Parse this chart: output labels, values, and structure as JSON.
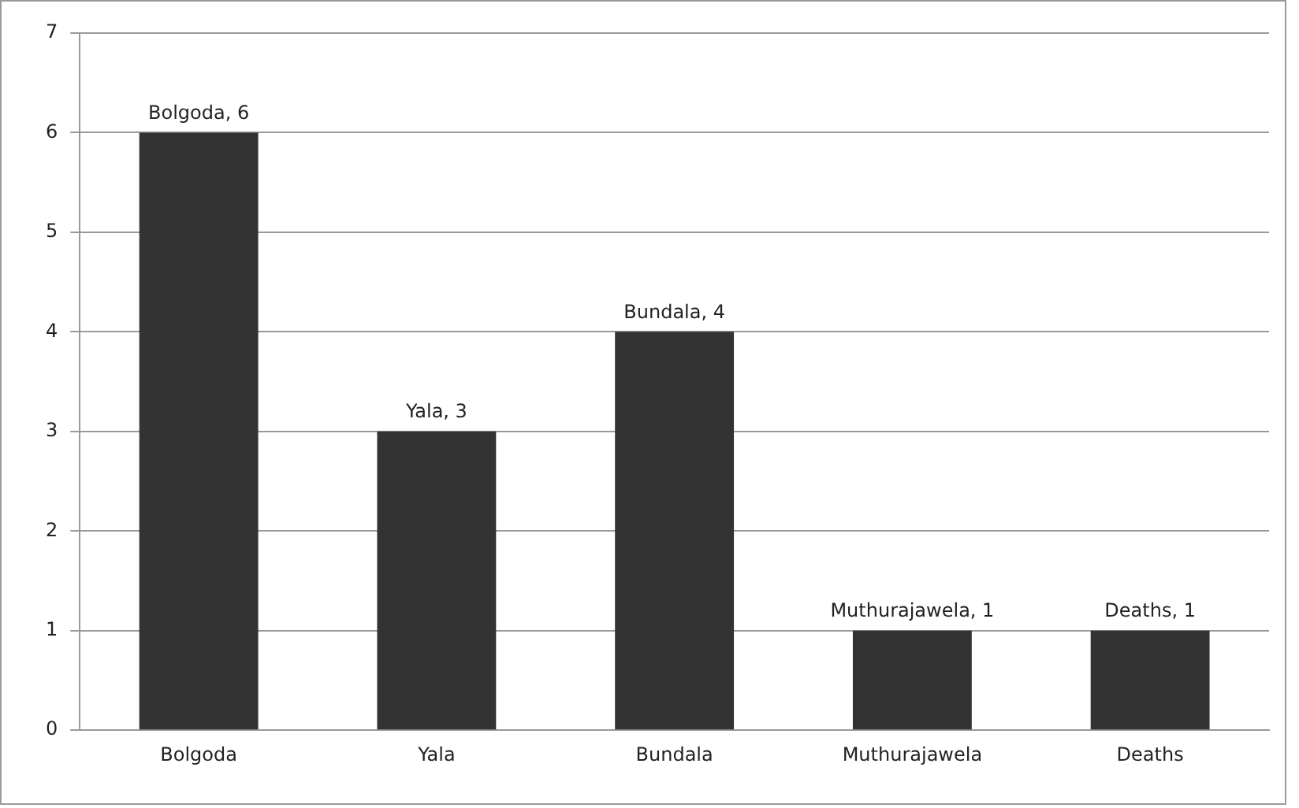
{
  "chart_data": {
    "type": "bar",
    "categories": [
      "Bolgoda",
      "Yala",
      "Bundala",
      "Muthurajawela",
      "Deaths"
    ],
    "values": [
      6,
      3,
      4,
      1,
      1
    ],
    "color": "#333333",
    "value_labels": [
      "Bolgoda, 6",
      "Yala, 3",
      "Bundala, 4",
      "Muthurajawela, 1",
      "Deaths, 1"
    ],
    "ylim": [
      0,
      7
    ],
    "yticks": [
      0,
      1,
      2,
      3,
      4,
      5,
      6,
      7
    ],
    "grid": "y",
    "legend": false
  }
}
